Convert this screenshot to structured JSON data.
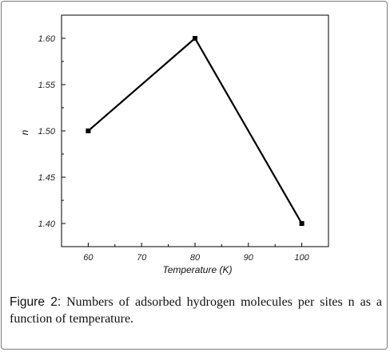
{
  "chart_data": {
    "type": "line",
    "x": [
      60,
      80,
      100
    ],
    "series": [
      {
        "values": [
          1.5,
          1.6,
          1.4
        ]
      }
    ],
    "xlabel": "Temperature (K)",
    "ylabel": "n",
    "xlim": [
      55,
      105
    ],
    "ylim": [
      1.375,
      1.625
    ],
    "xticks": [
      60,
      70,
      80,
      90,
      100
    ],
    "yticks": [
      1.4,
      1.45,
      1.5,
      1.55,
      1.6
    ],
    "xtick_labels": [
      "60",
      "70",
      "80",
      "90",
      "100"
    ],
    "ytick_labels": [
      "1.40",
      "1.45",
      "1.50",
      "1.55",
      "1.60"
    ],
    "grid": false,
    "line_color": "#000000",
    "marker": "square"
  },
  "caption": {
    "label": "Figure 2:",
    "text": " Numbers of adsorbed hydrogen molecules per sites n as a function of temperature."
  }
}
